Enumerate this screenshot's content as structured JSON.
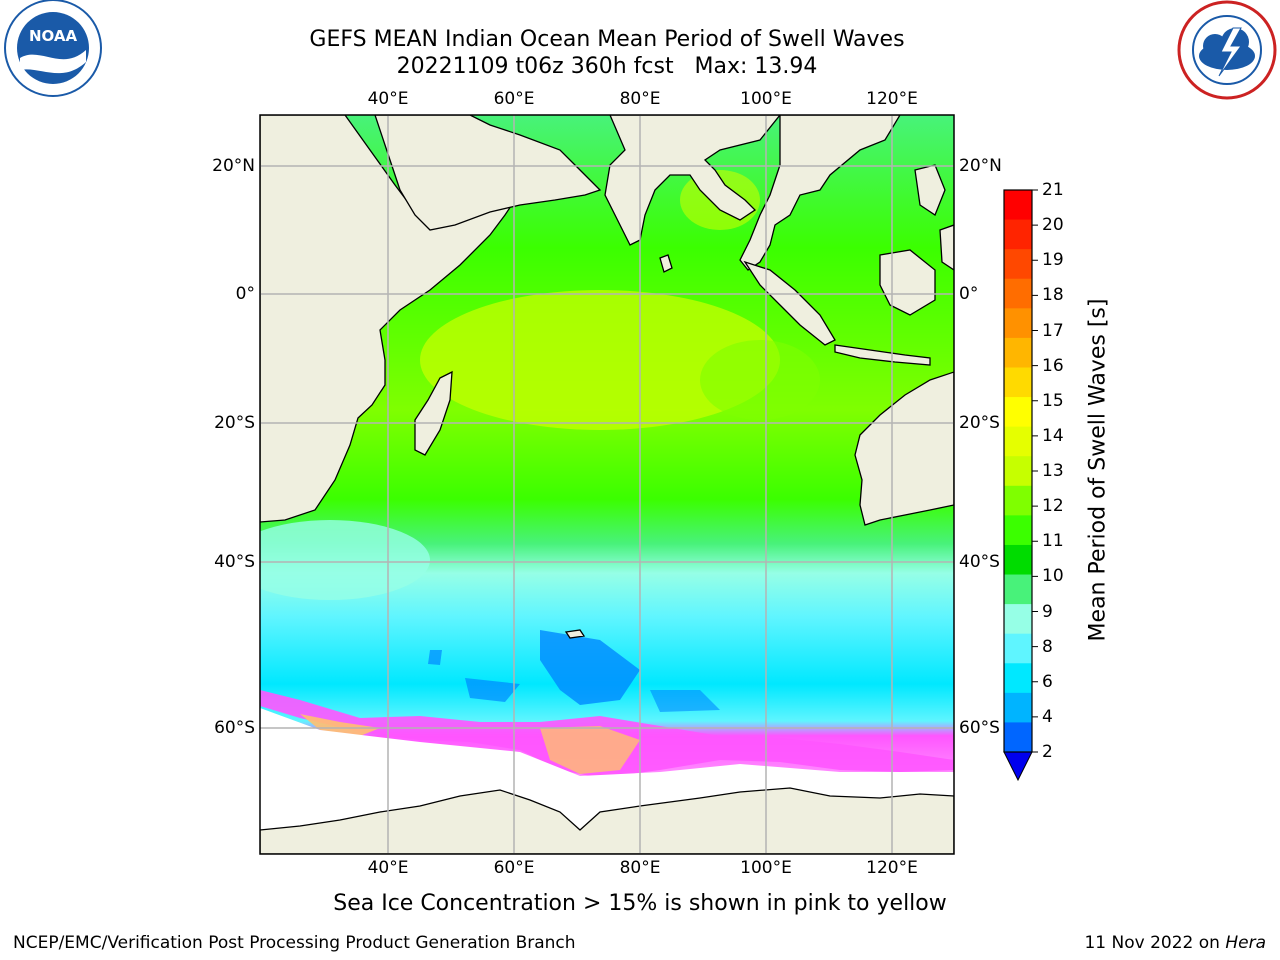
{
  "header": {
    "title_line1": "GEFS MEAN Indian Ocean Mean Period of Swell Waves",
    "title_line2": "20221109 t06z 360h fcst   Max: 13.94"
  },
  "logos": {
    "left": {
      "text": "NOAA",
      "ring_text": "NATIONAL OCEANIC AND ATMOSPHERIC ADMINISTRATION · U.S. DEPARTMENT OF COMMERCE"
    },
    "right": {
      "ring_text": "NATIONAL WEATHER SERVICE"
    }
  },
  "axes": {
    "lon_labels": [
      "40°E",
      "60°E",
      "80°E",
      "100°E",
      "120°E"
    ],
    "lat_labels_left": [
      "20°N",
      "0°",
      "20°S",
      "40°S",
      "60°S"
    ],
    "lat_labels_right": [
      "20°N",
      "0°",
      "20°S",
      "40°S",
      "60°S"
    ]
  },
  "colorbar": {
    "label": "Mean Period of Swell Waves [s]",
    "ticks": [
      "21",
      "20",
      "19",
      "18",
      "17",
      "16",
      "15",
      "14",
      "13",
      "12",
      "11",
      "10",
      "9",
      "8",
      "6",
      "4",
      "2"
    ],
    "colors_top_to_bottom": [
      "#ff0000",
      "#ff2400",
      "#ff4800",
      "#ff6d00",
      "#ff9100",
      "#ffb600",
      "#ffda00",
      "#ffff00",
      "#e5ff00",
      "#c6ff00",
      "#7fff00",
      "#3bff00",
      "#00dc00",
      "#48f27a",
      "#96ffe6",
      "#5ff5ff",
      "#00e8ff",
      "#00b4ff",
      "#0066ff"
    ],
    "under_color": "#0000ee"
  },
  "map": {
    "ocean_color": "#48f27a",
    "land_color": "#efefdf",
    "grid_color": "#b4b4b4"
  },
  "note": "Sea Ice Concentration > 15% is shown in pink to yellow",
  "footer": {
    "left": "NCEP/EMC/Verification Post Processing Product Generation Branch",
    "right_prefix": "11 Nov 2022 on ",
    "right_italic": "Hera"
  }
}
